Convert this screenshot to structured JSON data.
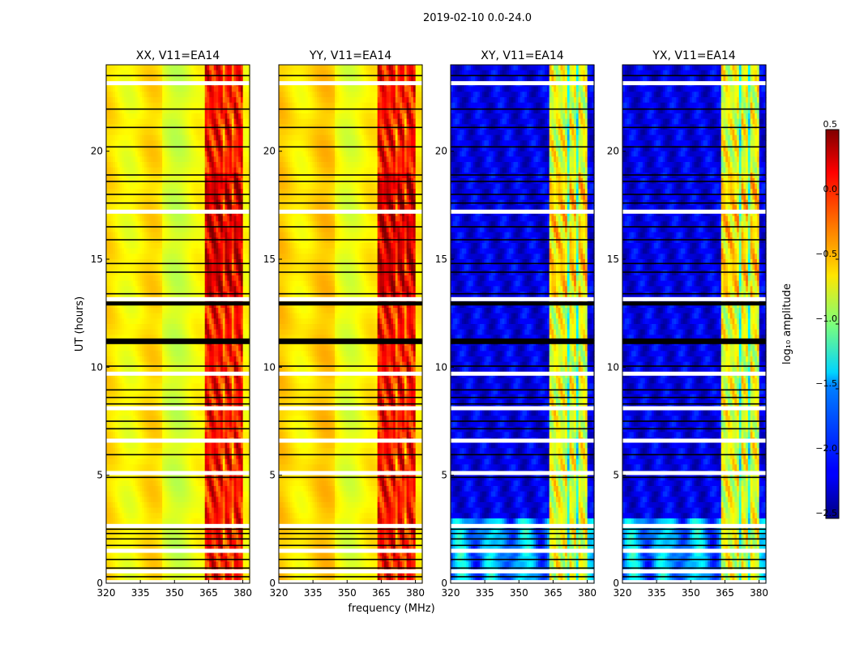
{
  "figure": {
    "title": "2019-02-10 0.0-24.0"
  },
  "chart_data": {
    "type": "heatmap",
    "ylabel": "UT (hours)",
    "xlabel": "frequency (MHz)",
    "xlim": [
      320,
      383
    ],
    "ylim": [
      0,
      24
    ],
    "xticks": [
      "320",
      "335",
      "350",
      "365",
      "380"
    ],
    "yticks": [
      "0",
      "5",
      "10",
      "15",
      "20"
    ],
    "colormap": "jet",
    "colorbar": {
      "label": "log₁₀ amplitude",
      "range": [
        -2.5,
        0.5
      ],
      "ticks": [
        "0.5",
        "0.0",
        "−0.5",
        "−1.0",
        "−1.5",
        "−2.0",
        "−2.5"
      ]
    },
    "panels": [
      {
        "title": "XX, V11=EA14",
        "base_level": 0.6,
        "band_level": 0.86,
        "cross": false
      },
      {
        "title": "YY, V11=EA14",
        "base_level": 0.62,
        "band_level": 0.86,
        "cross": false
      },
      {
        "title": "XY, V11=EA14",
        "base_level": 0.1,
        "band_level": 0.6,
        "cross": true
      },
      {
        "title": "YX, V11=EA14",
        "base_level": 0.1,
        "band_level": 0.6,
        "cross": true
      }
    ],
    "band_mhz": [
      363,
      380
    ],
    "white_gaps_hours": [
      0.05,
      0.55,
      1.5,
      2.65,
      5.1,
      6.6,
      8.1,
      9.7,
      13.15,
      17.2,
      23.15
    ],
    "black_lines_hours": [
      0.3,
      0.7,
      1.1,
      1.75,
      2.05,
      2.3,
      2.5,
      4.9,
      5.95,
      7.15,
      7.5,
      8.3,
      8.6,
      8.95,
      10.05,
      11.1,
      11.2,
      11.3,
      12.9,
      13.0,
      13.4,
      14.4,
      14.8,
      15.9,
      16.5,
      17.6,
      18.0,
      18.6,
      18.9,
      20.2,
      21.1,
      21.95,
      23.5
    ]
  }
}
